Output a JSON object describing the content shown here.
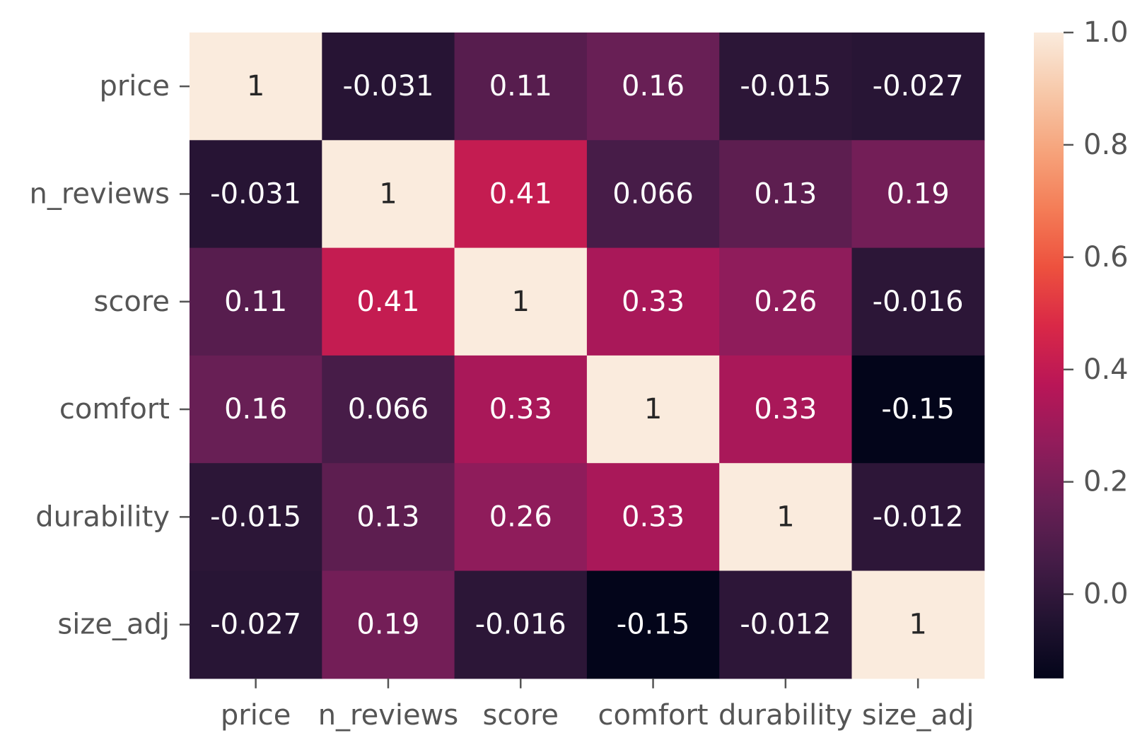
{
  "chart_data": {
    "type": "heatmap",
    "title": "",
    "xlabel": "",
    "ylabel": "",
    "x_labels": [
      "price",
      "n_reviews",
      "score",
      "comfort",
      "durability",
      "size_adj"
    ],
    "y_labels": [
      "price",
      "n_reviews",
      "score",
      "comfort",
      "durability",
      "size_adj"
    ],
    "values": [
      [
        1,
        -0.031,
        0.11,
        0.16,
        -0.015,
        -0.027
      ],
      [
        -0.031,
        1,
        0.41,
        0.066,
        0.13,
        0.19
      ],
      [
        0.11,
        0.41,
        1,
        0.33,
        0.26,
        -0.016
      ],
      [
        0.16,
        0.066,
        0.33,
        1,
        0.33,
        -0.15
      ],
      [
        -0.015,
        0.13,
        0.26,
        0.33,
        1,
        -0.012
      ],
      [
        -0.027,
        0.19,
        -0.016,
        -0.15,
        -0.012,
        1
      ]
    ],
    "value_labels": [
      [
        "1",
        "-0.031",
        "0.11",
        "0.16",
        "-0.015",
        "-0.027"
      ],
      [
        "-0.031",
        "1",
        "0.41",
        "0.066",
        "0.13",
        "0.19"
      ],
      [
        "0.11",
        "0.41",
        "1",
        "0.33",
        "0.26",
        "-0.016"
      ],
      [
        "0.16",
        "0.066",
        "0.33",
        "1",
        "0.33",
        "-0.15"
      ],
      [
        "-0.015",
        "0.13",
        "0.26",
        "0.33",
        "1",
        "-0.012"
      ],
      [
        "-0.027",
        "0.19",
        "-0.016",
        "-0.15",
        "-0.012",
        "1"
      ]
    ],
    "colorbar": {
      "vmin": -0.15,
      "vmax": 1.0,
      "ticks": [
        0.0,
        0.2,
        0.4,
        0.6,
        0.8,
        1.0
      ],
      "tick_labels": [
        "0.0",
        "0.2",
        "0.4",
        "0.6",
        "0.8",
        "1.0"
      ],
      "colormap": "rocket",
      "stops": [
        "#03051a",
        "#221331",
        "#451c47",
        "#691f55",
        "#921c5b",
        "#b91657",
        "#d92847",
        "#ed513e",
        "#f47d57",
        "#f6a47c",
        "#f7c9aa",
        "#faebdd"
      ]
    },
    "annotation_colors": {
      "light_text": "#ffffff",
      "dark_text": "#262626"
    },
    "grid": false
  }
}
